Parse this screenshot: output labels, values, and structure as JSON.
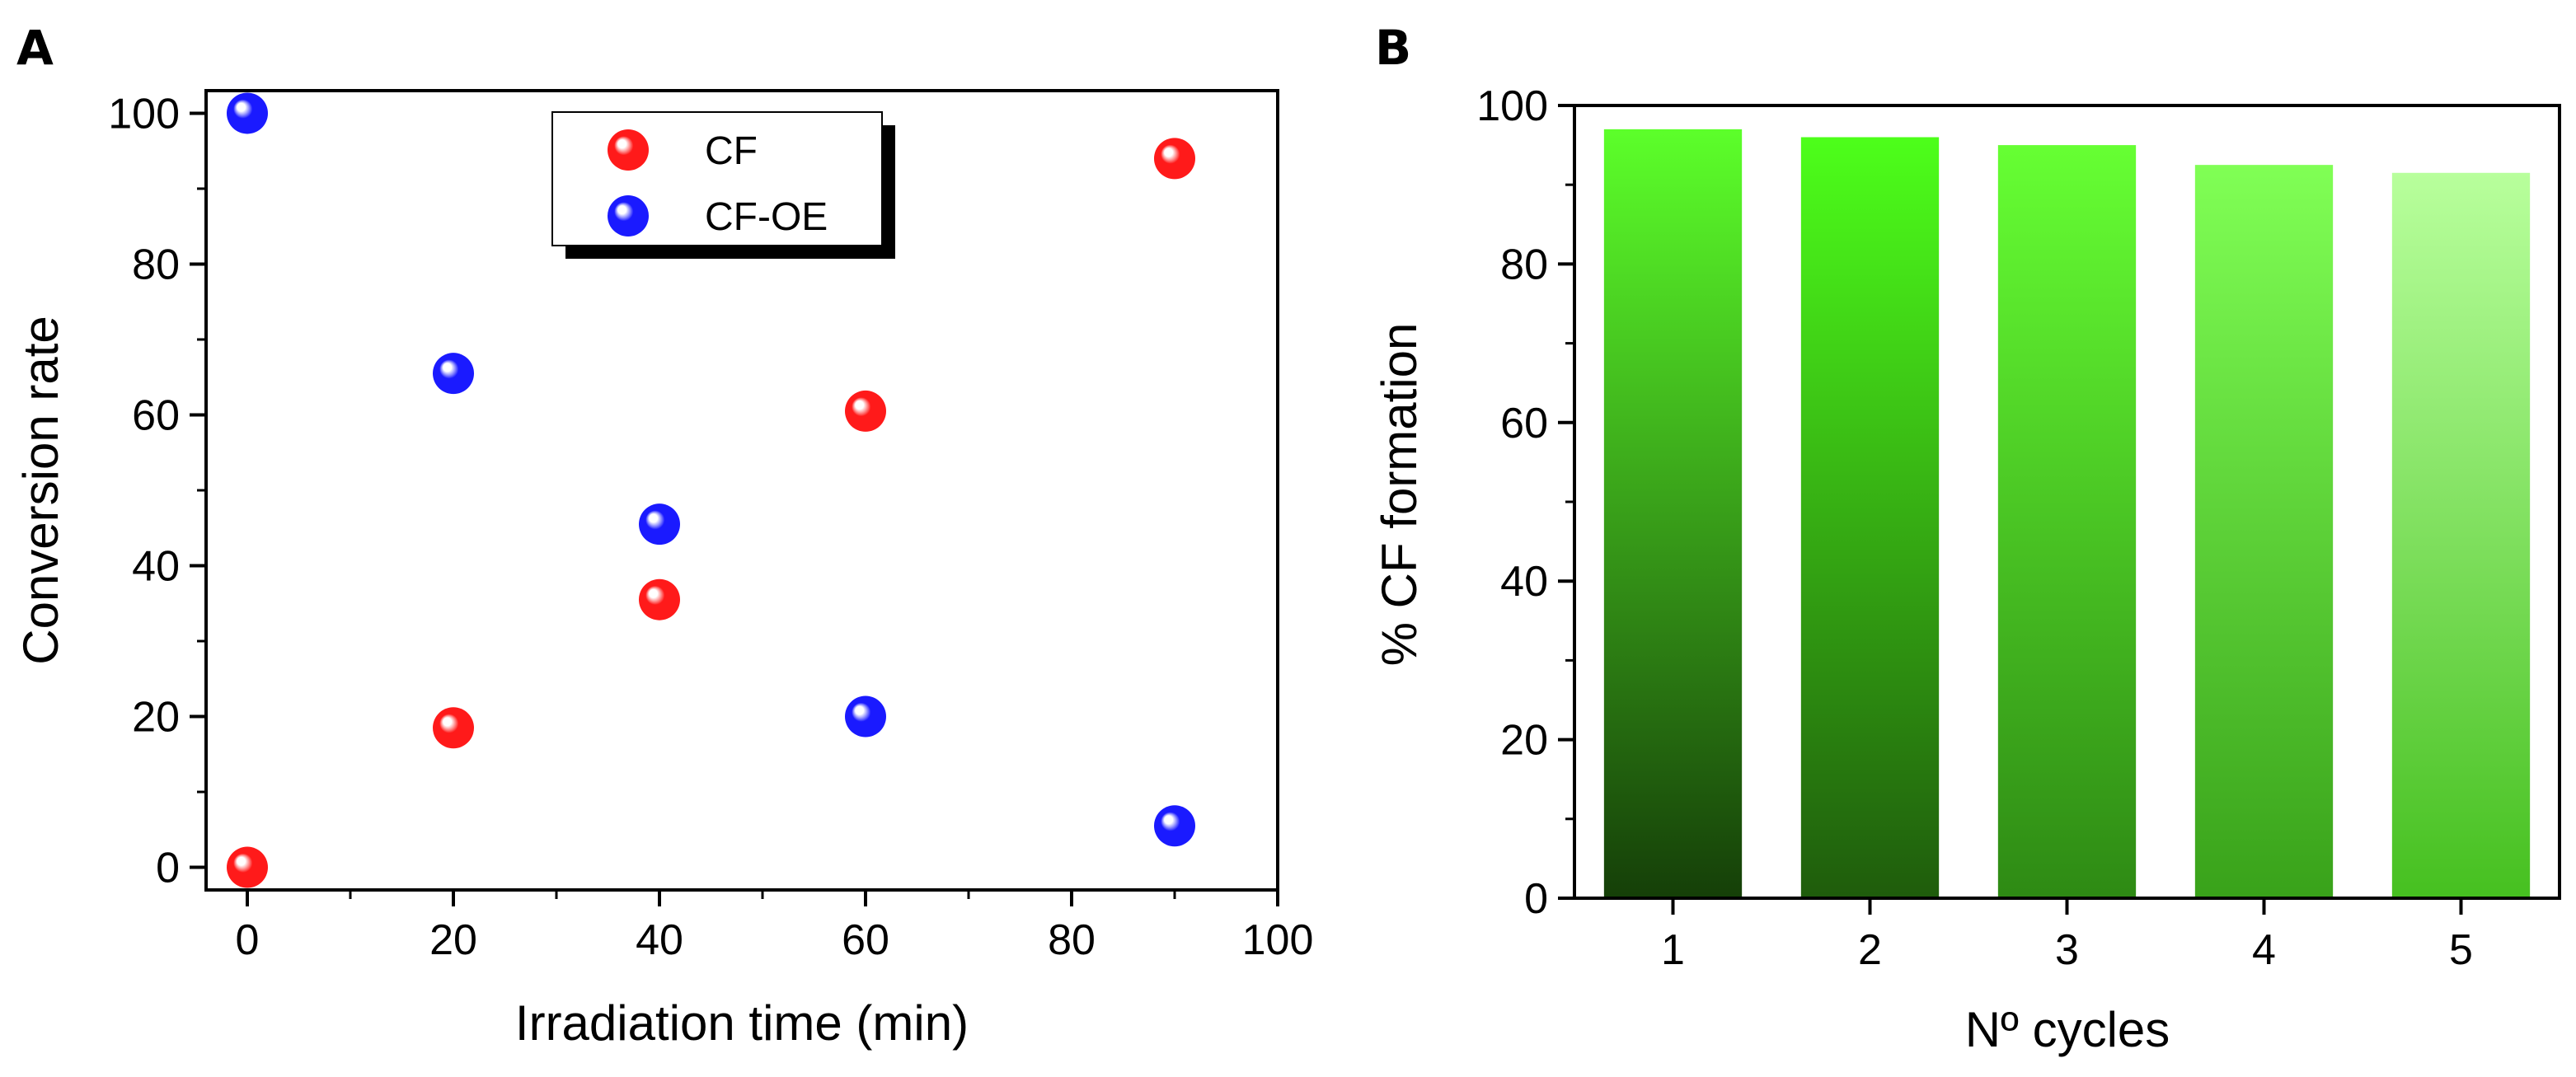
{
  "chart_data": [
    {
      "panel": "A",
      "type": "scatter",
      "xlabel": "Irradiation time (min)",
      "ylabel": "Conversion rate",
      "xlim": [
        -4,
        100
      ],
      "ylim": [
        -3,
        103
      ],
      "xticks": [
        "0",
        "20",
        "40",
        "60",
        "80",
        "100"
      ],
      "yticks": [
        "0",
        "20",
        "40",
        "60",
        "80",
        "100"
      ],
      "legend": "top-center",
      "series": [
        {
          "name": "CF",
          "color": "#ff1a1a",
          "x": [
            0,
            20,
            40,
            60,
            90
          ],
          "y": [
            0,
            18.5,
            35.5,
            60.5,
            94
          ]
        },
        {
          "name": "CF-OE",
          "color": "#1a1aff",
          "x": [
            0,
            20,
            40,
            60,
            90
          ],
          "y": [
            100,
            65.5,
            45.5,
            20,
            5.5
          ]
        }
      ]
    },
    {
      "panel": "B",
      "type": "bar",
      "xlabel": "Nº cycles",
      "ylabel": "% CF formation",
      "categories": [
        "1",
        "2",
        "3",
        "4",
        "5"
      ],
      "values": [
        97,
        96,
        95,
        92.5,
        91.5
      ],
      "ylim": [
        0,
        100
      ],
      "yticks": [
        "0",
        "20",
        "40",
        "60",
        "80",
        "100"
      ],
      "bar_colors": [
        {
          "top": "#5cff2a",
          "bottom": "#153f08"
        },
        {
          "top": "#4dff1a",
          "bottom": "#1f5c0c"
        },
        {
          "top": "#66ff33",
          "bottom": "#2e8a14"
        },
        {
          "top": "#80ff55",
          "bottom": "#39a21a"
        },
        {
          "top": "#b8ff9c",
          "bottom": "#46c020"
        }
      ]
    }
  ]
}
